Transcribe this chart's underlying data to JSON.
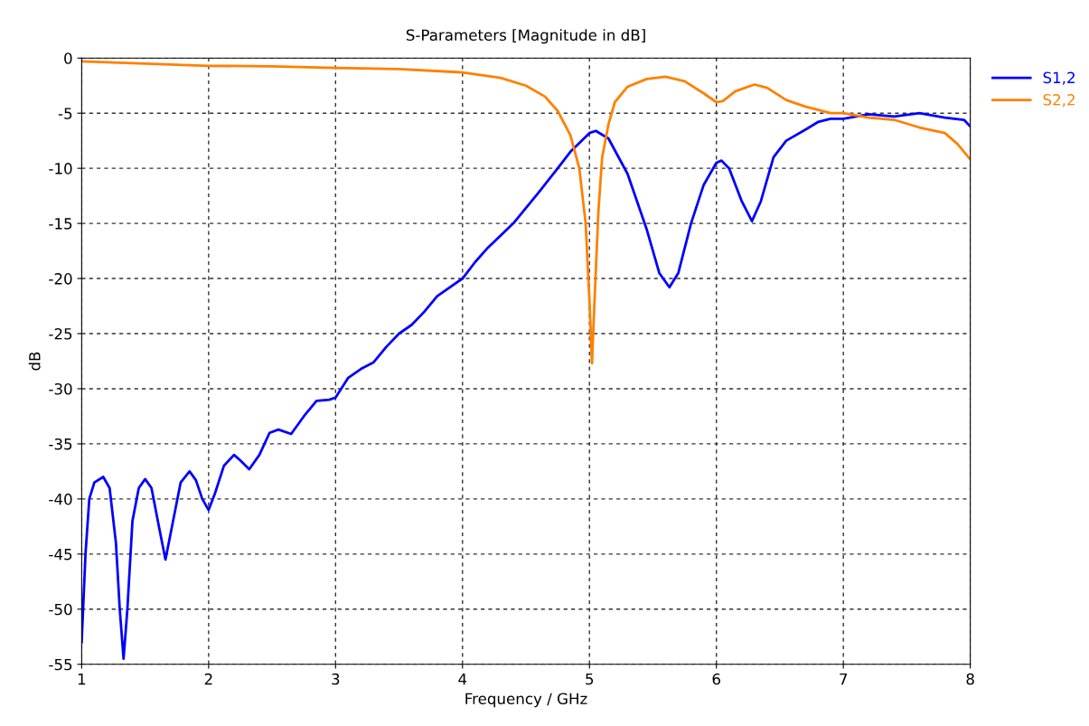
{
  "chart_data": {
    "type": "line",
    "title": "S-Parameters [Magnitude in dB]",
    "xlabel": "Frequency / GHz",
    "ylabel": "dB",
    "xlim": [
      1,
      8
    ],
    "ylim": [
      -55,
      0
    ],
    "xticks": [
      1,
      2,
      3,
      4,
      5,
      6,
      7,
      8
    ],
    "yticks": [
      -55,
      -50,
      -45,
      -40,
      -35,
      -30,
      -25,
      -20,
      -15,
      -10,
      -5,
      0
    ],
    "grid": true,
    "legend": "top right",
    "line_style": "solid",
    "series": [
      {
        "name": "S1,2",
        "color": "#0000ff",
        "x": [
          1.0,
          1.03,
          1.06,
          1.1,
          1.17,
          1.22,
          1.27,
          1.3,
          1.33,
          1.36,
          1.4,
          1.45,
          1.5,
          1.55,
          1.6,
          1.66,
          1.72,
          1.78,
          1.85,
          1.9,
          1.95,
          2.0,
          2.05,
          2.12,
          2.2,
          2.25,
          2.32,
          2.4,
          2.48,
          2.55,
          2.65,
          2.75,
          2.85,
          2.95,
          3.0,
          3.1,
          3.2,
          3.3,
          3.4,
          3.5,
          3.6,
          3.7,
          3.8,
          4.0,
          4.1,
          4.2,
          4.4,
          4.6,
          4.75,
          4.85,
          5.0,
          5.05,
          5.15,
          5.3,
          5.45,
          5.55,
          5.63,
          5.7,
          5.8,
          5.9,
          6.0,
          6.04,
          6.1,
          6.2,
          6.28,
          6.35,
          6.45,
          6.55,
          6.7,
          6.8,
          6.9,
          7.0,
          7.2,
          7.4,
          7.6,
          7.8,
          7.95,
          8.0
        ],
        "values": [
          -53,
          -45,
          -40,
          -38.5,
          -38,
          -39,
          -44,
          -50,
          -54.5,
          -50,
          -42,
          -39,
          -38.2,
          -39,
          -42,
          -45.5,
          -42,
          -38.5,
          -37.5,
          -38.3,
          -40,
          -41,
          -39.5,
          -37,
          -36,
          -36.5,
          -37.3,
          -36,
          -34,
          -33.7,
          -34.1,
          -32.5,
          -31.1,
          -31,
          -30.8,
          -29,
          -28.2,
          -27.6,
          -26.2,
          -25,
          -24.2,
          -23,
          -21.6,
          -20,
          -18.5,
          -17.2,
          -15,
          -12.2,
          -10,
          -8.5,
          -6.8,
          -6.6,
          -7.3,
          -10.5,
          -15.5,
          -19.5,
          -20.8,
          -19.5,
          -15,
          -11.5,
          -9.5,
          -9.3,
          -10,
          -13,
          -14.8,
          -13,
          -9,
          -7.5,
          -6.5,
          -5.8,
          -5.5,
          -5.5,
          -5.1,
          -5.3,
          -5.0,
          -5.4,
          -5.6,
          -6.2
        ]
      },
      {
        "name": "S2,2",
        "color": "#ff8000",
        "x": [
          1.0,
          1.5,
          2.0,
          2.5,
          3.0,
          3.5,
          4.0,
          4.3,
          4.5,
          4.65,
          4.75,
          4.85,
          4.92,
          4.97,
          5.0,
          5.02,
          5.04,
          5.07,
          5.1,
          5.15,
          5.2,
          5.3,
          5.45,
          5.6,
          5.75,
          5.9,
          6.0,
          6.05,
          6.15,
          6.3,
          6.4,
          6.55,
          6.7,
          6.9,
          7.0,
          7.2,
          7.4,
          7.6,
          7.8,
          7.9,
          8.0
        ],
        "values": [
          -0.3,
          -0.5,
          -0.7,
          -0.75,
          -0.9,
          -1.0,
          -1.3,
          -1.8,
          -2.5,
          -3.5,
          -4.8,
          -7,
          -10,
          -15,
          -22,
          -27.7,
          -22,
          -14,
          -9,
          -6,
          -4,
          -2.6,
          -1.9,
          -1.7,
          -2.1,
          -3.2,
          -4.0,
          -3.9,
          -3.0,
          -2.4,
          -2.7,
          -3.8,
          -4.4,
          -5.0,
          -5.0,
          -5.4,
          -5.6,
          -6.3,
          -6.8,
          -7.8,
          -9.2
        ]
      }
    ]
  }
}
